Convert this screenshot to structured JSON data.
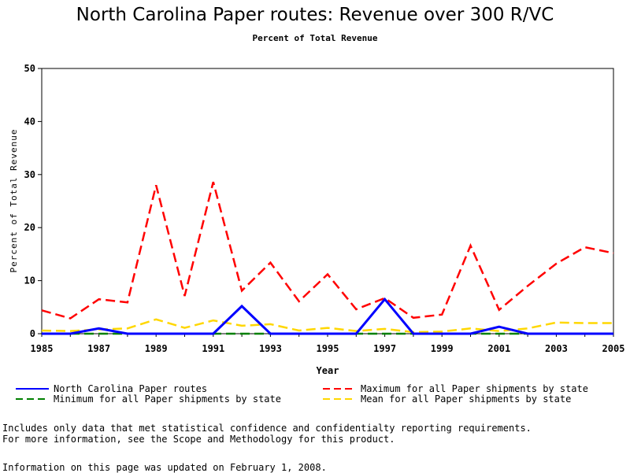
{
  "chart_data": {
    "type": "line",
    "title": "North Carolina Paper routes: Revenue over 300 R/VC",
    "subtitle": "Percent of Total Revenue",
    "xlabel": "Year",
    "ylabel": "Percent of Total Revenue",
    "xlim": [
      1985,
      2005
    ],
    "ylim": [
      0,
      50
    ],
    "x_ticks": [
      "1985",
      "1987",
      "1989",
      "1991",
      "1993",
      "1995",
      "1997",
      "1999",
      "2001",
      "2003",
      "2005"
    ],
    "y_ticks": [
      "0",
      "10",
      "20",
      "30",
      "40",
      "50"
    ],
    "x": [
      1985,
      1986,
      1987,
      1988,
      1989,
      1990,
      1991,
      1992,
      1993,
      1994,
      1995,
      1996,
      1997,
      1998,
      1999,
      2000,
      2001,
      2002,
      2003,
      2004,
      2005
    ],
    "series": [
      {
        "name": "North Carolina Paper routes",
        "color": "#0000ff",
        "dash": "solid",
        "values": [
          0,
          0,
          1.0,
          0,
          0,
          0,
          0,
          5.2,
          0,
          0,
          0,
          0,
          6.5,
          0,
          0,
          0,
          1.3,
          0,
          0,
          0,
          0
        ]
      },
      {
        "name": "Maximum for all Paper shipments by state",
        "color": "#ff0000",
        "dash": "long",
        "values": [
          4.4,
          2.9,
          6.5,
          5.9,
          28.0,
          7.1,
          28.6,
          8.1,
          13.4,
          6.1,
          11.2,
          4.6,
          6.7,
          3.0,
          3.6,
          16.6,
          4.5,
          9.0,
          13.2,
          16.3,
          15.2
        ]
      },
      {
        "name": "Minimum for all Paper shipments by state",
        "color": "#008000",
        "dash": "long",
        "values": [
          0,
          0,
          0,
          0,
          0,
          0,
          0,
          0,
          0,
          0,
          0,
          0,
          0,
          0,
          0,
          0,
          0,
          0,
          0,
          0,
          0
        ]
      },
      {
        "name": "Mean for all Paper shipments by state",
        "color": "#ffd700",
        "dash": "long",
        "values": [
          0.6,
          0.5,
          0.8,
          1.0,
          2.7,
          1.1,
          2.5,
          1.5,
          1.8,
          0.6,
          1.1,
          0.5,
          0.9,
          0.3,
          0.4,
          1.0,
          0.5,
          1.0,
          2.1,
          2.0,
          2.0
        ]
      }
    ],
    "legend_position": "bottom"
  },
  "notes": {
    "line1": "Includes only data that met statistical confidence and confidentialty reporting requirements.",
    "line2": "For more information, see the Scope and Methodology for this product.",
    "updated": "Information on this page was updated on February 1, 2008."
  }
}
